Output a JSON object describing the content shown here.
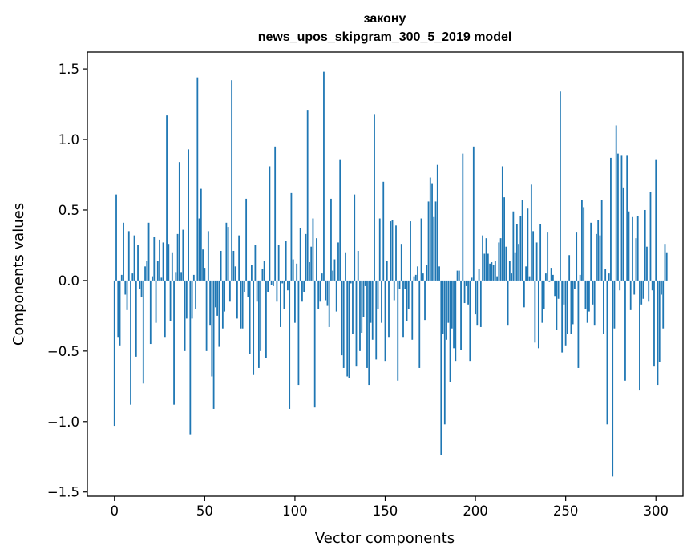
{
  "chart_data": {
    "type": "bar",
    "title_line1": "закону",
    "title_line2": "news_upos_skipgram_300_5_2019 model",
    "xlabel": "Vector components",
    "ylabel": "Components values",
    "xlim": [
      -15,
      315
    ],
    "ylim": [
      -1.53,
      1.62
    ],
    "xticks": [
      0,
      50,
      100,
      150,
      200,
      250,
      300
    ],
    "xtick_labels": [
      "0",
      "50",
      "100",
      "150",
      "200",
      "250",
      "300"
    ],
    "yticks": [
      -1.5,
      -1.0,
      -0.5,
      0.0,
      0.5,
      1.0,
      1.5
    ],
    "ytick_labels": [
      "−1.5",
      "−1.0",
      "−0.5",
      "0.0",
      "0.5",
      "1.0",
      "1.5"
    ],
    "bar_color": "#1f77b4",
    "values": [
      -1.03,
      0.61,
      -0.4,
      -0.46,
      0.04,
      0.41,
      -0.1,
      -0.21,
      0.35,
      -0.88,
      0.05,
      0.32,
      -0.54,
      0.25,
      -0.06,
      -0.12,
      -0.73,
      0.1,
      0.14,
      0.41,
      -0.45,
      0.03,
      0.31,
      -0.3,
      0.14,
      0.29,
      0.02,
      0.27,
      -0.4,
      1.17,
      0.26,
      -0.29,
      0.2,
      -0.88,
      0.06,
      0.33,
      0.84,
      0.06,
      0.36,
      -0.5,
      -0.27,
      0.93,
      -1.09,
      -0.27,
      0.04,
      -0.2,
      1.44,
      0.44,
      0.65,
      0.22,
      0.09,
      -0.5,
      0.35,
      -0.32,
      -0.68,
      -0.91,
      -0.19,
      -0.25,
      -0.47,
      0.21,
      -0.34,
      -0.22,
      0.41,
      0.38,
      -0.15,
      1.42,
      0.21,
      0.1,
      -0.27,
      0.32,
      -0.34,
      -0.34,
      -0.08,
      0.58,
      -0.12,
      -0.52,
      0.11,
      -0.67,
      0.25,
      -0.15,
      -0.62,
      -0.5,
      0.08,
      0.14,
      -0.55,
      -0.08,
      0.81,
      -0.03,
      -0.04,
      0.95,
      -0.15,
      0.25,
      -0.33,
      -0.02,
      -0.2,
      0.28,
      -0.07,
      -0.91,
      0.62,
      0.15,
      -0.3,
      0.12,
      -0.74,
      0.37,
      -0.15,
      -0.08,
      0.33,
      1.21,
      0.13,
      0.24,
      0.44,
      -0.9,
      0.3,
      -0.2,
      -0.15,
      0.05,
      1.48,
      -0.14,
      -0.18,
      -0.33,
      0.58,
      0.07,
      0.15,
      -0.22,
      0.27,
      0.86,
      -0.53,
      -0.62,
      0.2,
      -0.68,
      -0.69,
      -0.02,
      -0.38,
      0.61,
      -0.61,
      0.21,
      -0.5,
      -0.37,
      -0.26,
      -0.04,
      -0.62,
      -0.74,
      -0.3,
      -0.42,
      1.18,
      -0.56,
      -0.2,
      0.44,
      -0.3,
      0.7,
      -0.57,
      0.14,
      -0.4,
      0.42,
      0.43,
      -0.14,
      0.39,
      -0.71,
      -0.06,
      0.26,
      -0.4,
      -0.06,
      -0.29,
      -0.2,
      0.42,
      -0.42,
      0.03,
      0.04,
      0.1,
      -0.62,
      0.44,
      0.05,
      -0.28,
      0.11,
      0.56,
      0.73,
      0.69,
      0.45,
      0.56,
      0.82,
      0.1,
      -1.24,
      -0.38,
      -1.02,
      -0.42,
      -0.3,
      -0.72,
      -0.34,
      -0.48,
      -0.57,
      0.07,
      0.07,
      -0.49,
      0.9,
      -0.16,
      -0.04,
      -0.17,
      -0.57,
      0.02,
      0.95,
      -0.24,
      -0.32,
      0.08,
      -0.33,
      0.32,
      0.19,
      0.3,
      0.19,
      0.12,
      0.13,
      0.11,
      0.14,
      0.03,
      0.27,
      0.3,
      0.81,
      0.59,
      0.24,
      -0.32,
      0.14,
      0.05,
      0.49,
      0.2,
      0.4,
      0.26,
      0.46,
      0.57,
      -0.19,
      0.1,
      0.51,
      0.03,
      0.68,
      0.35,
      -0.44,
      0.27,
      -0.48,
      0.4,
      -0.3,
      -0.2,
      0.05,
      0.34,
      -0.01,
      0.09,
      0.04,
      -0.11,
      -0.35,
      -0.13,
      1.34,
      -0.51,
      -0.17,
      -0.46,
      -0.38,
      0.18,
      -0.38,
      -0.31,
      -0.06,
      0.34,
      -0.62,
      0.04,
      0.57,
      0.52,
      -0.2,
      -0.3,
      -0.22,
      0.41,
      -0.17,
      -0.32,
      0.33,
      0.43,
      0.32,
      0.57,
      -0.38,
      0.08,
      -1.02,
      0.05,
      0.87,
      -1.39,
      -0.34,
      1.1,
      0.9,
      -0.07,
      0.89,
      0.66,
      -0.71,
      0.89,
      0.49,
      -0.21,
      0.45,
      -0.1,
      0.3,
      0.46,
      -0.78,
      -0.17,
      -0.13,
      0.5,
      0.24,
      -0.15,
      0.63,
      -0.07,
      -0.61,
      0.86,
      -0.74,
      -0.58,
      -0.1,
      -0.34,
      0.26,
      0.2
    ]
  }
}
